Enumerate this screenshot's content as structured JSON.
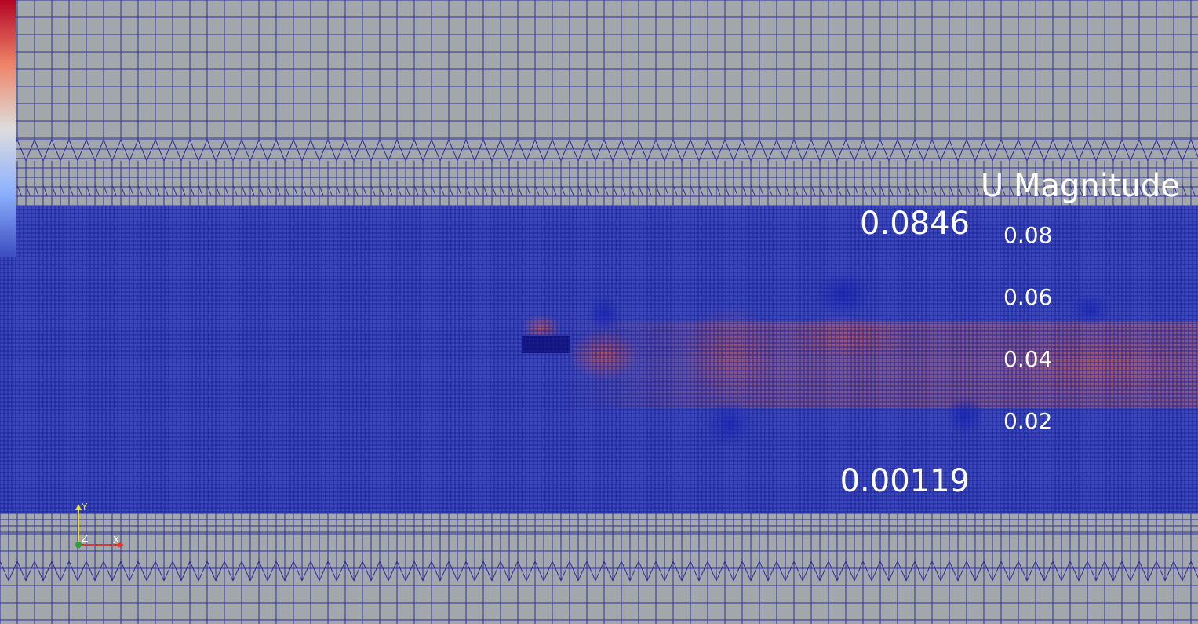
{
  "legend": {
    "title": "U Magnitude",
    "range_max": "0.0846",
    "range_min": "0.00119",
    "ticks": [
      "0.08",
      "0.06",
      "0.04",
      "0.02"
    ],
    "colormap": "cool-to-warm"
  },
  "axes": {
    "x_label": "X",
    "y_label": "Y",
    "z_label": "Z",
    "x_color": "#e8322a",
    "y_color": "#e8e03a",
    "z_color": "#2f9e3a"
  },
  "colors": {
    "background": "#a2a7ac",
    "mesh_line": "#1c1c98",
    "field_low": "#3b4cc0",
    "field_mid": "#dddddd",
    "field_high": "#b40426"
  }
}
